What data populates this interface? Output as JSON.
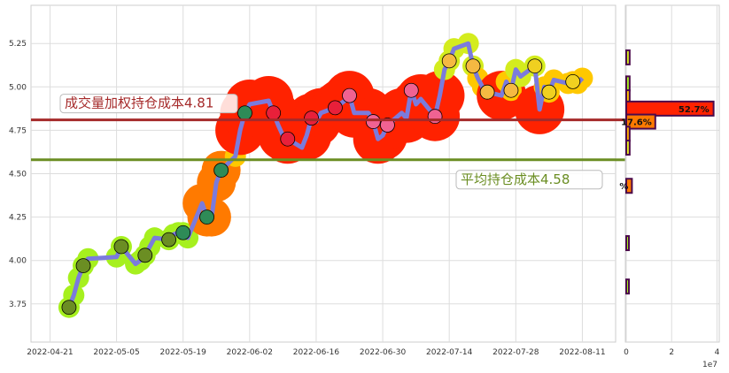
{
  "chart_data": [
    {
      "type": "line",
      "x_ticks": [
        "2022-04-21",
        "2022-05-05",
        "2022-05-19",
        "2022-06-02",
        "2022-06-16",
        "2022-06-30",
        "2022-07-14",
        "2022-07-28",
        "2022-08-11"
      ],
      "y_ticks": [
        "3.75",
        "4.00",
        "4.25",
        "4.50",
        "4.75",
        "5.00",
        "5.25"
      ],
      "ylim": [
        3.53,
        5.47
      ],
      "xlim": [
        "2022-04-17",
        "2022-08-18"
      ],
      "grid": true,
      "colors": {
        "line": "#7b7bdc",
        "vwap": "#a52a2a",
        "avg": "#6b8e23"
      },
      "x": [
        "2022-04-25",
        "2022-04-26",
        "2022-04-27",
        "2022-04-28",
        "2022-04-29",
        "2022-05-05",
        "2022-05-06",
        "2022-05-09",
        "2022-05-10",
        "2022-05-11",
        "2022-05-12",
        "2022-05-13",
        "2022-05-16",
        "2022-05-17",
        "2022-05-18",
        "2022-05-19",
        "2022-05-20",
        "2022-05-23",
        "2022-05-24",
        "2022-05-25",
        "2022-05-26",
        "2022-05-27",
        "2022-05-30",
        "2022-05-31",
        "2022-06-01",
        "2022-06-02",
        "2022-06-06",
        "2022-06-07",
        "2022-06-08",
        "2022-06-09",
        "2022-06-10",
        "2022-06-13",
        "2022-06-14",
        "2022-06-15",
        "2022-06-16",
        "2022-06-17",
        "2022-06-20",
        "2022-06-21",
        "2022-06-22",
        "2022-06-23",
        "2022-06-24",
        "2022-06-27",
        "2022-06-28",
        "2022-06-29",
        "2022-06-30",
        "2022-07-01",
        "2022-07-04",
        "2022-07-05",
        "2022-07-06",
        "2022-07-07",
        "2022-07-08",
        "2022-07-11",
        "2022-07-12",
        "2022-07-13",
        "2022-07-14",
        "2022-07-15",
        "2022-07-18",
        "2022-07-19",
        "2022-07-20",
        "2022-07-21",
        "2022-07-22",
        "2022-07-25",
        "2022-07-26",
        "2022-07-27",
        "2022-07-28",
        "2022-07-29",
        "2022-08-01",
        "2022-08-02",
        "2022-08-03",
        "2022-08-04",
        "2022-08-05",
        "2022-08-08",
        "2022-08-09",
        "2022-08-10",
        "2022-08-11"
      ],
      "values": [
        3.73,
        3.8,
        3.9,
        3.97,
        4.01,
        4.02,
        4.08,
        3.98,
        4.0,
        4.03,
        4.08,
        4.13,
        4.12,
        4.15,
        4.16,
        4.16,
        4.13,
        4.33,
        4.25,
        4.25,
        4.45,
        4.52,
        4.6,
        4.75,
        4.85,
        4.9,
        4.92,
        4.85,
        4.78,
        4.72,
        4.7,
        4.65,
        4.72,
        4.82,
        4.8,
        4.85,
        4.88,
        4.9,
        4.92,
        4.95,
        4.85,
        4.85,
        4.8,
        4.7,
        4.72,
        4.78,
        4.85,
        4.82,
        4.98,
        4.9,
        4.93,
        4.83,
        4.95,
        5.1,
        5.15,
        5.22,
        5.25,
        5.12,
        5.05,
        5.0,
        4.97,
        4.95,
        5.03,
        4.98,
        5.1,
        5.06,
        5.12,
        4.87,
        5.0,
        4.97,
        5.04,
        5.02,
        5.03,
        5.02,
        5.05
      ],
      "hlines": [
        {
          "label": "成交量加权持仓成本4.81",
          "value": 4.81,
          "color": "#a52a2a"
        },
        {
          "label": "平均持仓成本4.58",
          "value": 4.58,
          "color": "#6b8e23"
        }
      ]
    },
    {
      "type": "bar",
      "orientation": "horizontal",
      "x_ticks": [
        "0",
        "2",
        "4"
      ],
      "x_offset_label": "1e7",
      "xlim": [
        0,
        41000000.0
      ],
      "price_levels": [
        5.17,
        5.02,
        4.94,
        4.875,
        4.8,
        4.73,
        4.65,
        4.43,
        4.1,
        3.85
      ],
      "values": [
        1500000.0,
        1500000.0,
        1500000.0,
        38500000.0,
        12800000.0,
        1500000.0,
        1500000.0,
        2500000.0,
        500000.0,
        800000.0
      ],
      "colors": [
        "#d4ec1e",
        "#a6f01e",
        "#ffc800",
        "#ff2200",
        "#ff7a00",
        "#ffb000",
        "#e8f01e",
        "#ff7a00",
        "#a6f01e",
        "#a6f01e"
      ],
      "labels": [
        "",
        "",
        "",
        "52.7%",
        "17.6%",
        "",
        "",
        "%",
        "",
        ""
      ]
    }
  ]
}
